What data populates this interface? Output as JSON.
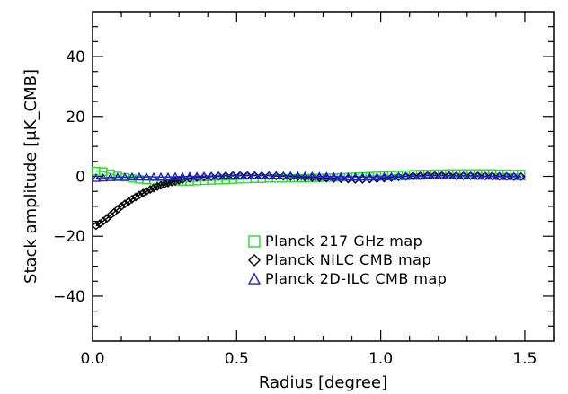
{
  "chart_data": {
    "type": "scatter",
    "xlabel": "Radius [degree]",
    "ylabel": "Stack amplitude [μK_CMB]",
    "xlim": [
      0.0,
      1.6
    ],
    "ylim": [
      -55,
      55
    ],
    "x_ticks": [
      {
        "value": 0.0,
        "label": "0.0"
      },
      {
        "value": 0.5,
        "label": "0.5"
      },
      {
        "value": 1.0,
        "label": "1.0"
      },
      {
        "value": 1.5,
        "label": "1.5"
      }
    ],
    "y_ticks": [
      {
        "value": -40,
        "label": "−40"
      },
      {
        "value": -20,
        "label": "−20"
      },
      {
        "value": 0,
        "label": "0"
      },
      {
        "value": 20,
        "label": "20"
      },
      {
        "value": 40,
        "label": "40"
      }
    ],
    "grid": false,
    "legend_position": "lower-right",
    "series": [
      {
        "name": "Planck 217 GHz map",
        "marker": "square",
        "color": "#22dd22",
        "x": [
          0.012,
          0.037,
          0.062,
          0.087,
          0.112,
          0.137,
          0.162,
          0.187,
          0.212,
          0.237,
          0.262,
          0.287,
          0.312,
          0.337,
          0.362,
          0.387,
          0.412,
          0.437,
          0.462,
          0.487,
          0.512,
          0.537,
          0.562,
          0.587,
          0.612,
          0.637,
          0.662,
          0.687,
          0.712,
          0.737,
          0.762,
          0.787,
          0.812,
          0.837,
          0.862,
          0.887,
          0.912,
          0.937,
          0.962,
          0.987,
          1.012,
          1.037,
          1.062,
          1.087,
          1.112,
          1.137,
          1.162,
          1.187,
          1.212,
          1.237,
          1.262,
          1.287,
          1.312,
          1.337,
          1.362,
          1.387,
          1.412,
          1.437,
          1.462,
          1.487
        ],
        "y": [
          1.8,
          1.6,
          0.9,
          0.2,
          -0.3,
          -0.7,
          -1.0,
          -1.2,
          -1.4,
          -1.5,
          -1.6,
          -1.7,
          -1.7,
          -1.7,
          -1.6,
          -1.5,
          -1.4,
          -1.3,
          -1.2,
          -1.1,
          -1.0,
          -0.9,
          -0.8,
          -0.8,
          -0.7,
          -0.7,
          -0.7,
          -0.6,
          -0.6,
          -0.6,
          -0.5,
          -0.5,
          -0.4,
          -0.4,
          -0.3,
          -0.2,
          -0.1,
          0.0,
          0.1,
          0.2,
          0.3,
          0.4,
          0.5,
          0.6,
          0.7,
          0.8,
          0.8,
          0.9,
          0.9,
          1.0,
          1.0,
          1.0,
          1.0,
          1.0,
          1.0,
          1.0,
          0.9,
          0.9,
          0.8,
          0.8
        ]
      },
      {
        "name": "Planck NILC CMB map",
        "marker": "diamond",
        "color": "#000000",
        "x": [
          0.012,
          0.025,
          0.037,
          0.05,
          0.062,
          0.075,
          0.087,
          0.1,
          0.112,
          0.125,
          0.137,
          0.15,
          0.162,
          0.175,
          0.187,
          0.2,
          0.212,
          0.225,
          0.237,
          0.25,
          0.262,
          0.275,
          0.287,
          0.3,
          0.312,
          0.337,
          0.362,
          0.387,
          0.412,
          0.437,
          0.462,
          0.487,
          0.512,
          0.537,
          0.562,
          0.587,
          0.612,
          0.637,
          0.662,
          0.687,
          0.712,
          0.737,
          0.762,
          0.787,
          0.812,
          0.837,
          0.862,
          0.887,
          0.912,
          0.937,
          0.962,
          0.987,
          1.012,
          1.037,
          1.062,
          1.087,
          1.112,
          1.137,
          1.162,
          1.187,
          1.212,
          1.237,
          1.262,
          1.287,
          1.312,
          1.337,
          1.362,
          1.387,
          1.412,
          1.437,
          1.462,
          1.487
        ],
        "y": [
          -16.5,
          -15.8,
          -15.0,
          -14.0,
          -13.0,
          -12.0,
          -11.0,
          -10.0,
          -9.2,
          -8.4,
          -7.6,
          -6.9,
          -6.2,
          -5.6,
          -5.0,
          -4.4,
          -3.9,
          -3.4,
          -3.0,
          -2.6,
          -2.2,
          -1.9,
          -1.6,
          -1.3,
          -1.1,
          -0.7,
          -0.4,
          -0.2,
          0.0,
          0.1,
          0.2,
          0.3,
          0.3,
          0.3,
          0.3,
          0.2,
          0.2,
          0.1,
          0.0,
          -0.1,
          -0.2,
          -0.3,
          -0.4,
          -0.5,
          -0.6,
          -0.7,
          -0.8,
          -0.9,
          -1.0,
          -1.0,
          -0.9,
          -0.8,
          -0.6,
          -0.4,
          -0.2,
          0.0,
          0.1,
          0.2,
          0.3,
          0.3,
          0.3,
          0.3,
          0.2,
          0.2,
          0.2,
          0.2,
          0.1,
          0.1,
          0.0,
          0.0,
          -0.1,
          -0.1
        ]
      },
      {
        "name": "Planck 2D-ILC CMB map",
        "marker": "triangle",
        "color": "#2222cc",
        "x": [
          0.012,
          0.037,
          0.062,
          0.087,
          0.112,
          0.137,
          0.162,
          0.187,
          0.212,
          0.237,
          0.262,
          0.287,
          0.312,
          0.337,
          0.362,
          0.387,
          0.412,
          0.437,
          0.462,
          0.487,
          0.512,
          0.537,
          0.562,
          0.587,
          0.612,
          0.637,
          0.662,
          0.687,
          0.712,
          0.737,
          0.762,
          0.787,
          0.812,
          0.837,
          0.862,
          0.887,
          0.912,
          0.937,
          0.962,
          0.987,
          1.012,
          1.037,
          1.062,
          1.087,
          1.112,
          1.137,
          1.162,
          1.187,
          1.212,
          1.237,
          1.262,
          1.287,
          1.312,
          1.337,
          1.362,
          1.387,
          1.412,
          1.437,
          1.462,
          1.487
        ],
        "y": [
          -0.6,
          -0.5,
          -0.4,
          -0.3,
          -0.3,
          -0.2,
          -0.2,
          -0.2,
          -0.2,
          -0.2,
          -0.2,
          -0.1,
          -0.1,
          0.0,
          0.0,
          0.1,
          0.1,
          0.2,
          0.2,
          0.3,
          0.3,
          0.3,
          0.3,
          0.3,
          0.3,
          0.3,
          0.2,
          0.2,
          0.2,
          0.1,
          0.1,
          0.0,
          0.0,
          -0.1,
          -0.1,
          -0.2,
          -0.2,
          -0.2,
          -0.2,
          -0.2,
          -0.1,
          -0.1,
          0.0,
          0.0,
          0.1,
          0.1,
          0.2,
          0.2,
          0.2,
          0.2,
          0.2,
          0.2,
          0.2,
          0.1,
          0.1,
          0.1,
          0.0,
          0.0,
          0.0,
          0.0
        ]
      }
    ]
  }
}
